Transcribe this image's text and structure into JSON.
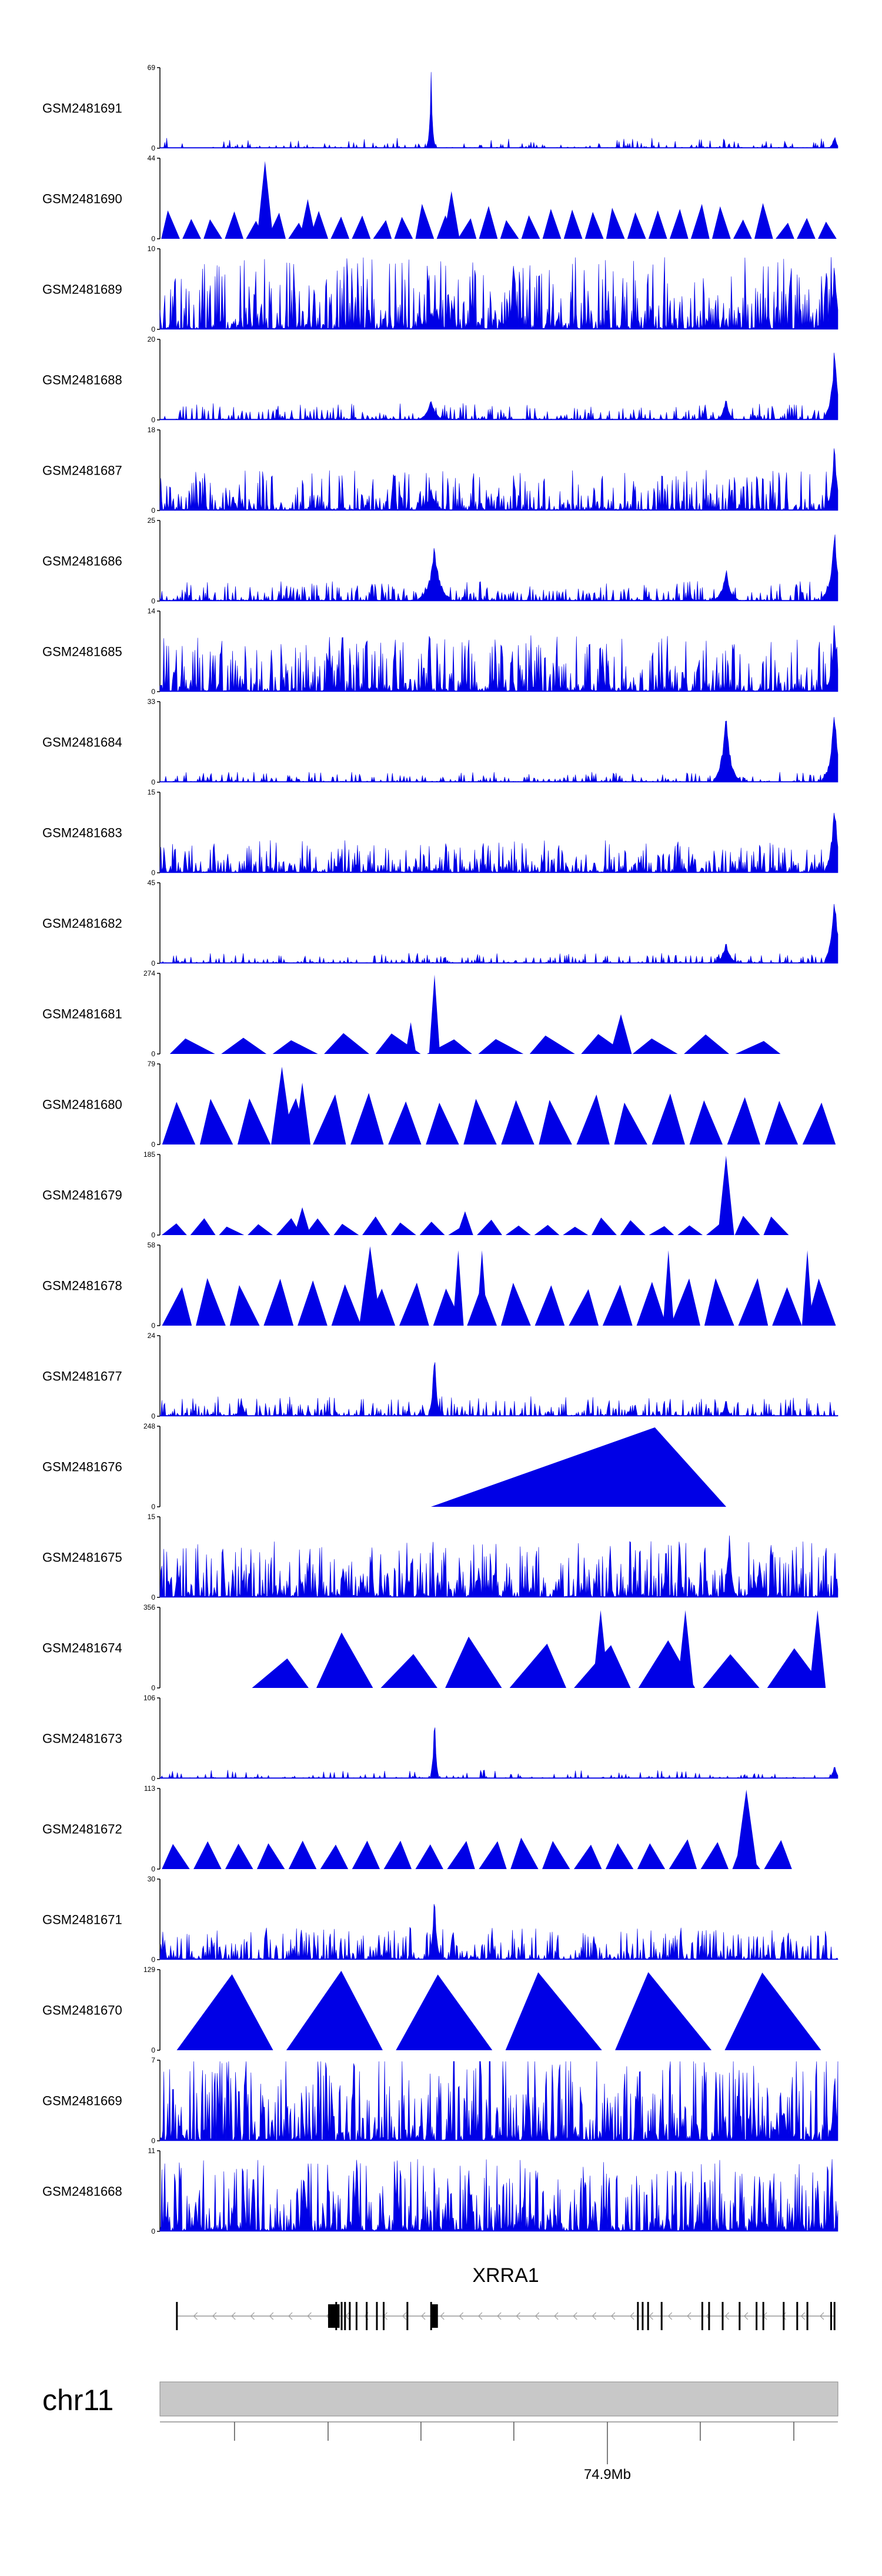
{
  "chart_data": {
    "type": "area",
    "title": "",
    "colors": {
      "signal": "#0000e6",
      "axis": "#000000",
      "ideogram": "#c8c8c8",
      "gene": "#000000",
      "intron": "#999999"
    },
    "tracks": [
      {
        "name": "GSM2481691",
        "ymax": 69,
        "ymin": 0,
        "shape": "dense",
        "density": 0.25,
        "noise": 0.06,
        "seed": 11,
        "peaks": [
          [
            0.4,
            1.0,
            0.002
          ],
          [
            0.995,
            0.18,
            0.003
          ]
        ]
      },
      {
        "name": "GSM2481690",
        "ymax": 44,
        "ymin": 0,
        "shape": "triangles",
        "count": 32,
        "lo": 0.2,
        "hi": 0.5,
        "seed": 12,
        "peaks": [
          [
            0.155,
            0.98,
            0.003
          ],
          [
            0.218,
            0.5,
            0.003
          ],
          [
            0.43,
            0.6,
            0.003
          ]
        ]
      },
      {
        "name": "GSM2481689",
        "ymax": 10,
        "ymin": 0,
        "shape": "dense",
        "density": 0.85,
        "noise": 0.45,
        "seed": 13,
        "peaks": [
          [
            0.52,
            0.6,
            0.003
          ],
          [
            0.995,
            1.0,
            0.004
          ]
        ]
      },
      {
        "name": "GSM2481688",
        "ymax": 20,
        "ymin": 0,
        "shape": "dense",
        "density": 0.5,
        "noise": 0.1,
        "seed": 14,
        "peaks": [
          [
            0.4,
            0.3,
            0.006
          ],
          [
            0.835,
            0.35,
            0.004
          ],
          [
            0.995,
            1.0,
            0.005
          ]
        ]
      },
      {
        "name": "GSM2481687",
        "ymax": 18,
        "ymin": 0,
        "shape": "dense",
        "density": 0.8,
        "noise": 0.25,
        "seed": 15,
        "peaks": [
          [
            0.4,
            0.3,
            0.006
          ],
          [
            0.995,
            1.0,
            0.004
          ]
        ]
      },
      {
        "name": "GSM2481686",
        "ymax": 25,
        "ymin": 0,
        "shape": "dense",
        "density": 0.6,
        "noise": 0.12,
        "seed": 16,
        "peaks": [
          [
            0.405,
            0.75,
            0.008
          ],
          [
            0.835,
            0.45,
            0.006
          ],
          [
            0.995,
            1.0,
            0.006
          ]
        ]
      },
      {
        "name": "GSM2481685",
        "ymax": 14,
        "ymin": 0,
        "shape": "dense",
        "density": 0.8,
        "noise": 0.35,
        "seed": 17,
        "peaks": [
          [
            0.995,
            1.0,
            0.004
          ]
        ]
      },
      {
        "name": "GSM2481684",
        "ymax": 33,
        "ymin": 0,
        "shape": "dense",
        "density": 0.4,
        "noise": 0.06,
        "seed": 18,
        "peaks": [
          [
            0.835,
            1.0,
            0.006
          ],
          [
            0.995,
            1.0,
            0.006
          ]
        ]
      },
      {
        "name": "GSM2481683",
        "ymax": 15,
        "ymin": 0,
        "shape": "dense",
        "density": 0.75,
        "noise": 0.2,
        "seed": 19,
        "peaks": [
          [
            0.995,
            1.0,
            0.005
          ]
        ]
      },
      {
        "name": "GSM2481682",
        "ymax": 45,
        "ymin": 0,
        "shape": "dense",
        "density": 0.35,
        "noise": 0.06,
        "seed": 20,
        "peaks": [
          [
            0.835,
            0.3,
            0.006
          ],
          [
            0.995,
            1.0,
            0.005
          ]
        ]
      },
      {
        "name": "GSM2481681",
        "ymax": 274,
        "ymin": 0,
        "shape": "triangles",
        "count": 12,
        "lo": 0.15,
        "hi": 0.28,
        "span": [
          0.01,
          0.92
        ],
        "seed": 21,
        "peaks": [
          [
            0.37,
            0.4,
            0.002
          ],
          [
            0.405,
            1.0,
            0.002
          ],
          [
            0.68,
            0.5,
            0.004
          ]
        ]
      },
      {
        "name": "GSM2481680",
        "ymax": 79,
        "ymin": 0,
        "shape": "triangles",
        "count": 18,
        "lo": 0.5,
        "hi": 0.65,
        "seed": 22,
        "peaks": [
          [
            0.18,
            0.98,
            0.004
          ],
          [
            0.21,
            0.78,
            0.003
          ]
        ]
      },
      {
        "name": "GSM2481679",
        "ymax": 185,
        "ymin": 0,
        "shape": "triangles",
        "count": 22,
        "lo": 0.1,
        "hi": 0.25,
        "span": [
          0.0,
          0.93
        ],
        "seed": 23,
        "peaks": [
          [
            0.21,
            0.35,
            0.003
          ],
          [
            0.45,
            0.3,
            0.003
          ],
          [
            0.835,
            1.0,
            0.003
          ]
        ]
      },
      {
        "name": "GSM2481678",
        "ymax": 58,
        "ymin": 0,
        "shape": "triangles",
        "count": 20,
        "lo": 0.45,
        "hi": 0.6,
        "seed": 24,
        "peaks": [
          [
            0.31,
            1.0,
            0.004
          ],
          [
            0.44,
            0.95,
            0.002
          ],
          [
            0.475,
            0.95,
            0.002
          ],
          [
            0.75,
            0.95,
            0.002
          ],
          [
            0.955,
            0.95,
            0.002
          ]
        ]
      },
      {
        "name": "GSM2481677",
        "ymax": 24,
        "ymin": 0,
        "shape": "dense",
        "density": 0.55,
        "noise": 0.12,
        "seed": 25,
        "peaks": [
          [
            0.405,
            1.0,
            0.003
          ],
          [
            0.12,
            0.3,
            0.003
          ],
          [
            0.835,
            0.25,
            0.003
          ]
        ]
      },
      {
        "name": "GSM2481676",
        "ymax": 248,
        "ymin": 0,
        "shape": "triangles",
        "count": 1,
        "lo": 1.0,
        "hi": 1.0,
        "span": [
          0.37,
          0.865
        ],
        "seed": 26,
        "apex": 0.73,
        "peaks": []
      },
      {
        "name": "GSM2481675",
        "ymax": 15,
        "ymin": 0,
        "shape": "dense",
        "density": 0.85,
        "noise": 0.35,
        "seed": 27,
        "peaks": [
          [
            0.84,
            1.0,
            0.003
          ],
          [
            0.885,
            0.6,
            0.003
          ]
        ]
      },
      {
        "name": "GSM2481674",
        "ymax": 356,
        "ymin": 0,
        "shape": "triangles",
        "count": 9,
        "lo": 0.3,
        "hi": 0.7,
        "span": [
          0.13,
          0.985
        ],
        "seed": 28,
        "peaks": [
          [
            0.65,
            0.98,
            0.003
          ],
          [
            0.775,
            0.98,
            0.003
          ],
          [
            0.97,
            0.98,
            0.003
          ]
        ]
      },
      {
        "name": "GSM2481673",
        "ymax": 106,
        "ymin": 0,
        "shape": "dense",
        "density": 0.25,
        "noise": 0.05,
        "seed": 29,
        "peaks": [
          [
            0.405,
            1.0,
            0.002
          ],
          [
            0.995,
            0.2,
            0.003
          ]
        ]
      },
      {
        "name": "GSM2481672",
        "ymax": 113,
        "ymin": 0,
        "shape": "triangles",
        "count": 20,
        "lo": 0.3,
        "hi": 0.4,
        "span": [
          0.0,
          0.935
        ],
        "seed": 30,
        "peaks": [
          [
            0.865,
            1.0,
            0.004
          ]
        ]
      },
      {
        "name": "GSM2481671",
        "ymax": 30,
        "ymin": 0,
        "shape": "dense",
        "density": 0.7,
        "noise": 0.2,
        "seed": 31,
        "peaks": [
          [
            0.405,
            1.0,
            0.003
          ]
        ]
      },
      {
        "name": "GSM2481670",
        "ymax": 129,
        "ymin": 0,
        "shape": "triangles",
        "count": 6,
        "lo": 0.95,
        "hi": 1.0,
        "span": [
          0.015,
          0.985
        ],
        "seed": 32,
        "peaks": []
      },
      {
        "name": "GSM2481669",
        "ymax": 7,
        "ymin": 0,
        "shape": "dense",
        "density": 0.9,
        "noise": 0.55,
        "seed": 33,
        "peaks": [
          [
            0.995,
            1.0,
            0.003
          ]
        ]
      },
      {
        "name": "GSM2481668",
        "ymax": 11,
        "ymin": 0,
        "shape": "dense",
        "density": 0.9,
        "noise": 0.45,
        "seed": 34,
        "peaks": [
          [
            0.35,
            1.0,
            0.002
          ]
        ]
      }
    ],
    "gene": {
      "name": "XRRA1",
      "strand": "-",
      "exons": [
        0.025,
        0.26,
        0.268,
        0.273,
        0.28,
        0.29,
        0.305,
        0.32,
        0.33,
        0.365,
        0.4,
        0.705,
        0.712,
        0.72,
        0.74,
        0.8,
        0.81,
        0.83,
        0.855,
        0.88,
        0.89,
        0.92,
        0.94,
        0.955,
        0.99,
        0.995
      ],
      "thick_exons": [
        [
          0.248,
          0.265
        ],
        [
          0.4,
          0.41
        ]
      ]
    },
    "chromosome": {
      "name": "chr11",
      "ticks": [
        0.11,
        0.248,
        0.385,
        0.522,
        0.66,
        0.797,
        0.935
      ],
      "labeled_tick": 0.66,
      "labeled_text": "74.9Mb"
    }
  }
}
